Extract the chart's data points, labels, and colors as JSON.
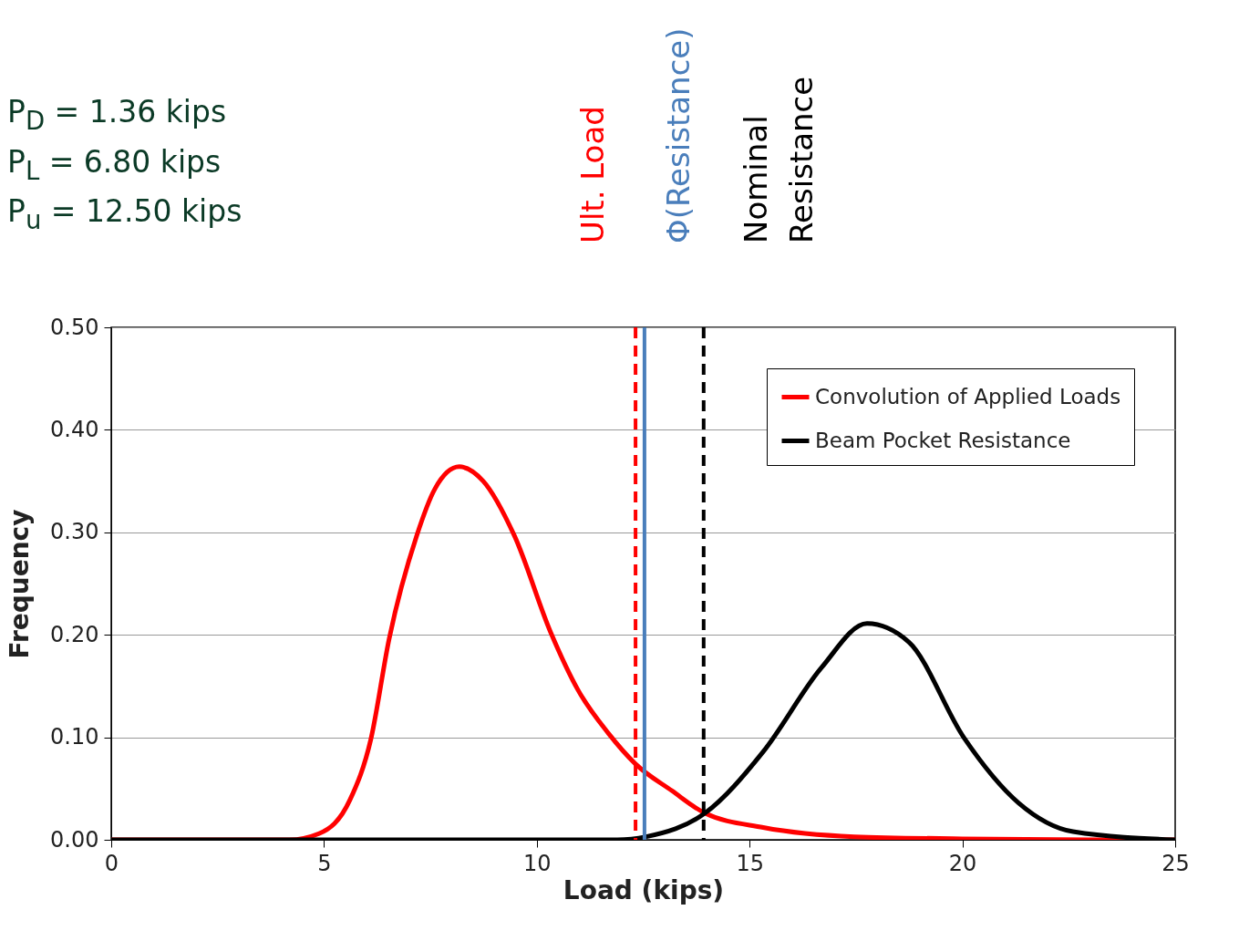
{
  "chart_data": {
    "type": "line",
    "xlabel": "Load (kips)",
    "ylabel": "Frequency",
    "xlim": [
      0,
      25
    ],
    "xticks": [
      0,
      5,
      10,
      15,
      20,
      25
    ],
    "ylim": [
      0,
      0.5
    ],
    "yticks": [
      {
        "value": 0,
        "label": "0.00"
      },
      {
        "value": 0.1,
        "label": "0.10"
      },
      {
        "value": 0.2,
        "label": "0.20"
      },
      {
        "value": 0.3,
        "label": "0.30"
      },
      {
        "value": 0.4,
        "label": "0.40"
      },
      {
        "value": 0.5,
        "label": "0.50"
      }
    ],
    "grid": "y",
    "legend": "top right",
    "marker": "none",
    "line_style": "solid",
    "series": [
      {
        "name": "Convolution of Applied Loads",
        "color": "#ff0000",
        "x": [
          0,
          4.18,
          4.88,
          5.61,
          6.1,
          6.53,
          7.18,
          7.6,
          8.18,
          8.74,
          9.47,
          10.33,
          10.97,
          11.68,
          12.32,
          13.17,
          13.95,
          15.32,
          17.46,
          20,
          23,
          25
        ],
        "values": [
          0,
          0,
          0.006,
          0.039,
          0.098,
          0.196,
          0.297,
          0.342,
          0.364,
          0.35,
          0.297,
          0.202,
          0.146,
          0.104,
          0.074,
          0.048,
          0.026,
          0.012,
          0.003,
          0.001,
          0,
          0
        ]
      },
      {
        "name": "Beam Pocket Resistance",
        "color": "#000000",
        "x": [
          0,
          11.89,
          12.57,
          13.95,
          15.32,
          16.69,
          17.76,
          18.74,
          20.03,
          21.32,
          22.6,
          25
        ],
        "values": [
          0,
          0,
          0.003,
          0.026,
          0.086,
          0.168,
          0.211,
          0.193,
          0.1,
          0.036,
          0.008,
          0
        ]
      }
    ],
    "ref_lines": [
      {
        "axis": "x",
        "value": 12.32,
        "label": "Ult. Load",
        "color": "#ff0000",
        "line_style": "dashed"
      },
      {
        "axis": "x",
        "value": 12.53,
        "label": "Φ(Resistance)",
        "color": "#4a7ebb",
        "line_style": "solid"
      },
      {
        "axis": "x",
        "value": 13.92,
        "label": "Nominal Resistance",
        "color": "#000000",
        "line_style": "dashed"
      }
    ],
    "annotations": [
      "P$_{D}$ = 1.36 kips",
      "P$_{L}$ = 6.80 kips",
      "P$_{u}$ = 12.50 kips"
    ]
  }
}
